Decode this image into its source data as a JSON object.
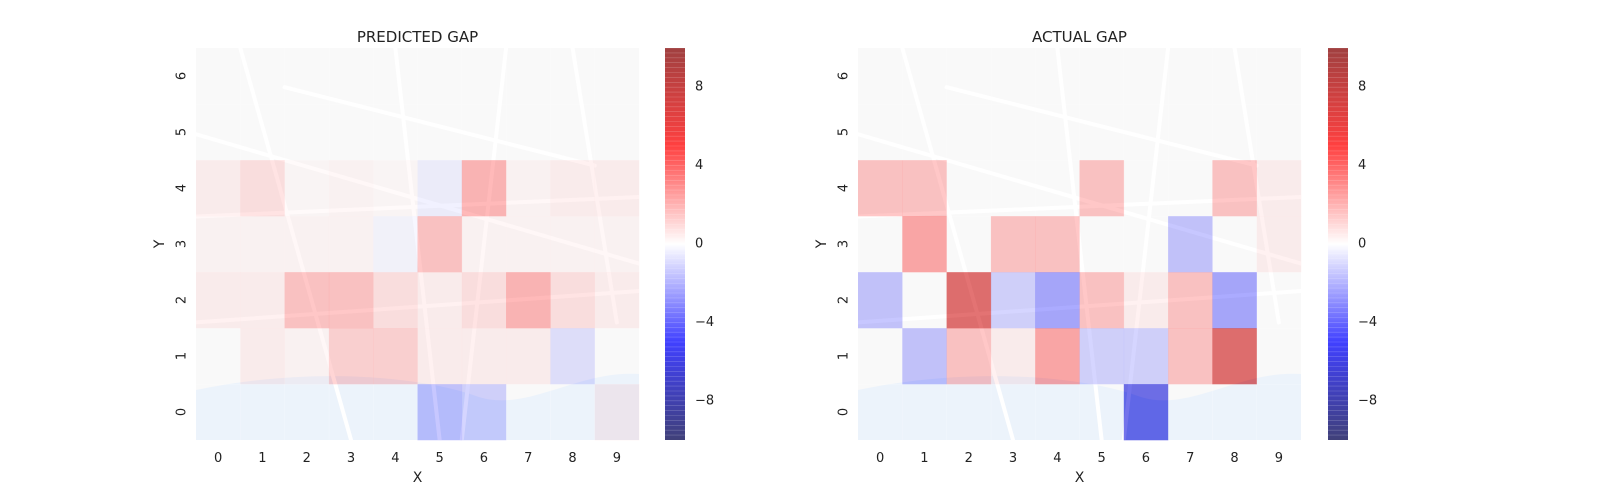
{
  "chart_data": [
    {
      "type": "heatmap",
      "title": "PREDICTED GAP",
      "xlabel": "X",
      "ylabel": "Y",
      "x_ticks": [
        0,
        1,
        2,
        3,
        4,
        5,
        6,
        7,
        8,
        9
      ],
      "y_ticks": [
        0,
        1,
        2,
        3,
        4,
        5,
        6
      ],
      "vlim": [
        -10,
        10
      ],
      "colorbar_ticks": [
        8,
        4,
        0,
        -4,
        -8
      ],
      "colorbar_tick_labels": [
        "8",
        "4",
        "0",
        "−4",
        "−8"
      ],
      "colormap": "seismic",
      "background": "map",
      "values": [
        [
          0,
          0,
          0,
          0,
          0,
          -2,
          -1.5,
          0,
          0,
          0.5
        ],
        [
          0,
          0.5,
          0.3,
          1.5,
          1.5,
          0.5,
          0.5,
          0.5,
          -1,
          0
        ],
        [
          0.5,
          0.5,
          2,
          2,
          1,
          0.5,
          1,
          2.5,
          1,
          0.5
        ],
        [
          0.3,
          0.3,
          0.3,
          0.3,
          -0.3,
          2,
          0.3,
          0.3,
          0.3,
          0.3
        ],
        [
          0.5,
          1,
          0.2,
          0.3,
          0.2,
          -0.5,
          2.5,
          0.3,
          0.5,
          0.5
        ],
        [
          0,
          0,
          0,
          0,
          0,
          0,
          0,
          0,
          0,
          0
        ],
        [
          0,
          0,
          0,
          0,
          0,
          0,
          0,
          0,
          0,
          0
        ]
      ]
    },
    {
      "type": "heatmap",
      "title": "ACTUAL GAP",
      "xlabel": "X",
      "ylabel": "Y",
      "x_ticks": [
        0,
        1,
        2,
        3,
        4,
        5,
        6,
        7,
        8,
        9
      ],
      "y_ticks": [
        0,
        1,
        2,
        3,
        4,
        5,
        6
      ],
      "vlim": [
        -10,
        10
      ],
      "colorbar_ticks": [
        8,
        4,
        0,
        -4,
        -8
      ],
      "colorbar_tick_labels": [
        "8",
        "4",
        "0",
        "−4",
        "−8"
      ],
      "colormap": "seismic",
      "background": "map",
      "values": [
        [
          0,
          0,
          0,
          0,
          0,
          0,
          -6,
          0,
          0,
          0
        ],
        [
          0,
          -2,
          2,
          0.5,
          3,
          -1.5,
          -1.5,
          2,
          7,
          0
        ],
        [
          -2,
          0,
          7,
          -1.5,
          -3,
          2,
          0.5,
          2,
          -3,
          0
        ],
        [
          0,
          3,
          0,
          2,
          2,
          0,
          0,
          -2,
          0,
          0.5
        ],
        [
          2,
          2,
          0,
          0,
          0,
          2,
          0,
          0,
          2,
          0.5
        ],
        [
          0,
          0,
          0,
          0,
          0,
          0,
          0,
          0,
          0,
          0
        ],
        [
          0,
          0,
          0,
          0,
          0,
          0,
          0,
          0,
          0,
          0
        ]
      ]
    }
  ]
}
